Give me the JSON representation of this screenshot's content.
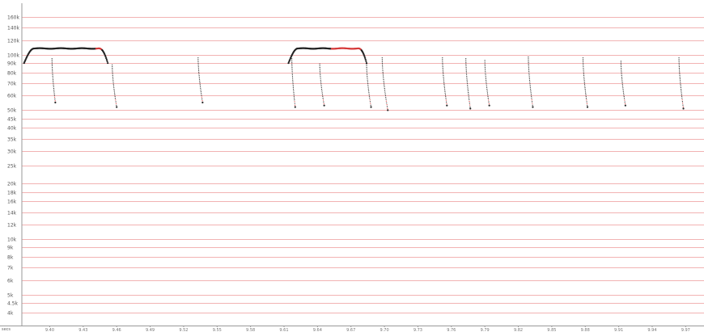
{
  "chart_data": {
    "type": "scatter",
    "title": "",
    "xlabel": "",
    "ylabel": "",
    "y_scale": "log",
    "ylim": [
      3500,
      190000
    ],
    "xlim": [
      9.375,
      9.985
    ],
    "grid": true,
    "colors": {
      "grid": "#f2b3b3",
      "point": "#222222",
      "highlight": "#d63a3a",
      "axis": "#999999"
    },
    "y_tick_labels": [
      {
        "value": 160000,
        "label": "160k"
      },
      {
        "value": 140000,
        "label": "140k"
      },
      {
        "value": 120000,
        "label": "120k"
      },
      {
        "value": 100000,
        "label": "100k"
      },
      {
        "value": 90000,
        "label": "90k"
      },
      {
        "value": 80000,
        "label": "80k"
      },
      {
        "value": 70000,
        "label": "70k"
      },
      {
        "value": 60000,
        "label": "60k"
      },
      {
        "value": 50000,
        "label": "50k"
      },
      {
        "value": 45000,
        "label": "45k"
      },
      {
        "value": 40000,
        "label": "40k"
      },
      {
        "value": 35000,
        "label": "35k"
      },
      {
        "value": 30000,
        "label": "30k"
      },
      {
        "value": 25000,
        "label": "25k"
      },
      {
        "value": 20000,
        "label": "20k"
      },
      {
        "value": 18000,
        "label": "18k"
      },
      {
        "value": 16000,
        "label": "16k"
      },
      {
        "value": 14000,
        "label": "14k"
      },
      {
        "value": 12000,
        "label": "12k"
      },
      {
        "value": 10000,
        "label": "10k"
      },
      {
        "value": 9000,
        "label": "9k"
      },
      {
        "value": 8000,
        "label": "8k"
      },
      {
        "value": 7000,
        "label": "7k"
      },
      {
        "value": 6000,
        "label": "6k"
      },
      {
        "value": 5000,
        "label": "5k"
      },
      {
        "value": 4500,
        "label": "4.5k"
      },
      {
        "value": 4000,
        "label": "4k"
      }
    ],
    "x_tick_labels": [
      {
        "value": 9.4,
        "label": "9.40"
      },
      {
        "value": 9.43,
        "label": "9.43"
      },
      {
        "value": 9.46,
        "label": "9.46"
      },
      {
        "value": 9.49,
        "label": "9.49"
      },
      {
        "value": 9.52,
        "label": "9.52"
      },
      {
        "value": 9.55,
        "label": "9.55"
      },
      {
        "value": 9.58,
        "label": "9.58"
      },
      {
        "value": 9.61,
        "label": "9.61"
      },
      {
        "value": 9.64,
        "label": "9.64"
      },
      {
        "value": 9.67,
        "label": "9.67"
      },
      {
        "value": 9.7,
        "label": "9.70"
      },
      {
        "value": 9.73,
        "label": "9.73"
      },
      {
        "value": 9.76,
        "label": "9.76"
      },
      {
        "value": 9.79,
        "label": "9.79"
      },
      {
        "value": 9.82,
        "label": "9.82"
      },
      {
        "value": 9.85,
        "label": "9.85"
      },
      {
        "value": 9.88,
        "label": "9.88"
      },
      {
        "value": 9.91,
        "label": "9.91"
      },
      {
        "value": 9.94,
        "label": "9.94"
      },
      {
        "value": 9.97,
        "label": "9.97"
      }
    ],
    "corner_label": "secs",
    "series": [
      {
        "kind": "plateau",
        "x_start": 9.377,
        "x_end": 9.452,
        "y_low": 90000,
        "y_high": 108000,
        "highlight_from": 0.86
      },
      {
        "kind": "plateau",
        "x_start": 9.614,
        "x_end": 9.684,
        "y_low": 90000,
        "y_high": 108000,
        "highlight_from": 0.55
      },
      {
        "kind": "drop",
        "x_start": 9.402,
        "x_end": 9.405,
        "y_start": 95000,
        "y_end": 55000
      },
      {
        "kind": "drop",
        "x_start": 9.456,
        "x_end": 9.46,
        "y_start": 88000,
        "y_end": 52000
      },
      {
        "kind": "drop",
        "x_start": 9.533,
        "x_end": 9.537,
        "y_start": 96000,
        "y_end": 55000
      },
      {
        "kind": "drop",
        "x_start": 9.617,
        "x_end": 9.62,
        "y_start": 95000,
        "y_end": 52000
      },
      {
        "kind": "drop",
        "x_start": 9.642,
        "x_end": 9.646,
        "y_start": 89000,
        "y_end": 53000
      },
      {
        "kind": "drop",
        "x_start": 9.684,
        "x_end": 9.688,
        "y_start": 89000,
        "y_end": 52000
      },
      {
        "kind": "drop",
        "x_start": 9.698,
        "x_end": 9.703,
        "y_start": 96000,
        "y_end": 50000
      },
      {
        "kind": "drop",
        "x_start": 9.752,
        "x_end": 9.756,
        "y_start": 96000,
        "y_end": 53000
      },
      {
        "kind": "drop",
        "x_start": 9.773,
        "x_end": 9.777,
        "y_start": 95000,
        "y_end": 51000
      },
      {
        "kind": "drop",
        "x_start": 9.79,
        "x_end": 9.794,
        "y_start": 93000,
        "y_end": 53000
      },
      {
        "kind": "drop",
        "x_start": 9.829,
        "x_end": 9.833,
        "y_start": 97000,
        "y_end": 52000
      },
      {
        "kind": "drop",
        "x_start": 9.878,
        "x_end": 9.882,
        "y_start": 96000,
        "y_end": 52000
      },
      {
        "kind": "drop",
        "x_start": 9.912,
        "x_end": 9.916,
        "y_start": 92000,
        "y_end": 53000
      },
      {
        "kind": "drop",
        "x_start": 9.964,
        "x_end": 9.968,
        "y_start": 96000,
        "y_end": 51000
      }
    ]
  }
}
